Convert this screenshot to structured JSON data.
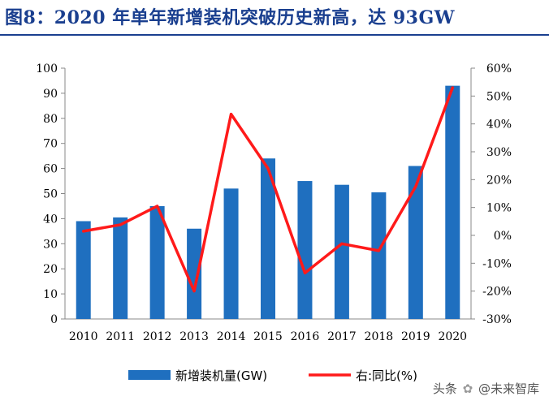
{
  "title": "图8：2020 年单年新增装机突破历史新高，达 93GW",
  "watermark": {
    "prefix": "头条",
    "handle": "@未来智库"
  },
  "chart_data": {
    "type": "bar",
    "categories": [
      "2010",
      "2011",
      "2012",
      "2013",
      "2014",
      "2015",
      "2016",
      "2017",
      "2018",
      "2019",
      "2020"
    ],
    "series": [
      {
        "name": "新增装机量(GW)",
        "type": "bar",
        "axis": "left",
        "color": "#1f6fbf",
        "values": [
          39,
          40.5,
          45,
          36,
          52,
          64,
          55,
          53.5,
          50.5,
          61,
          93
        ]
      },
      {
        "name": "右:同比(%)",
        "type": "line",
        "axis": "right",
        "color": "#ff1a1a",
        "values": [
          1.5,
          3.8,
          10.5,
          -20,
          43.5,
          24,
          -13.5,
          -3,
          -5.5,
          17.5,
          53
        ]
      }
    ],
    "y_left": {
      "min": 0,
      "max": 100,
      "ticks": [
        0,
        10,
        20,
        30,
        40,
        50,
        60,
        70,
        80,
        90,
        100
      ]
    },
    "y_right": {
      "min": -30,
      "max": 60,
      "ticks": [
        -30,
        -20,
        -10,
        0,
        10,
        20,
        30,
        40,
        50,
        60
      ],
      "suffix": "%"
    },
    "grid": false,
    "legend": "bottom"
  }
}
